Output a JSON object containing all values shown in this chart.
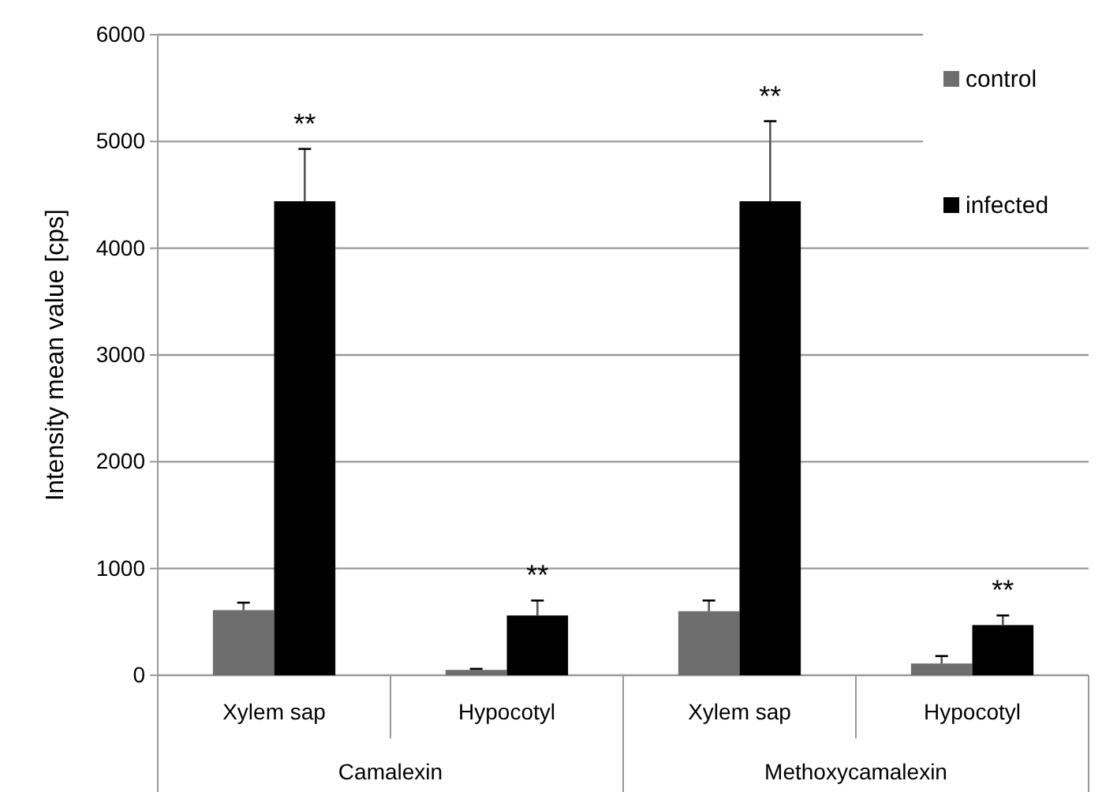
{
  "chart_data": {
    "type": "bar",
    "ylabel": "Intensity mean value [cps]",
    "categories": [
      "Xylem sap",
      "Hypocotyl",
      "Xylem sap",
      "Hypocotyl"
    ],
    "series": [
      {
        "name": "control",
        "color": "#6e6e6e",
        "values": [
          610,
          50,
          600,
          110
        ],
        "errors": [
          [
            610,
            680
          ],
          [
            50,
            60
          ],
          [
            600,
            700
          ],
          [
            110,
            180
          ]
        ]
      },
      {
        "name": "infected",
        "color": "#000000",
        "values": [
          4440,
          560,
          4440,
          470
        ],
        "errors": [
          [
            4440,
            4930
          ],
          [
            560,
            700
          ],
          [
            4440,
            5190
          ],
          [
            470,
            560
          ]
        ]
      }
    ],
    "ylim": [
      0,
      6000
    ],
    "yticks": [
      0,
      1000,
      2000,
      3000,
      4000,
      5000,
      6000
    ],
    "grid": "y",
    "legend": "top right",
    "annotations": [
      "**",
      "**",
      "**",
      "**",
      "Camalexin",
      "Methoxycamalexin"
    ]
  }
}
